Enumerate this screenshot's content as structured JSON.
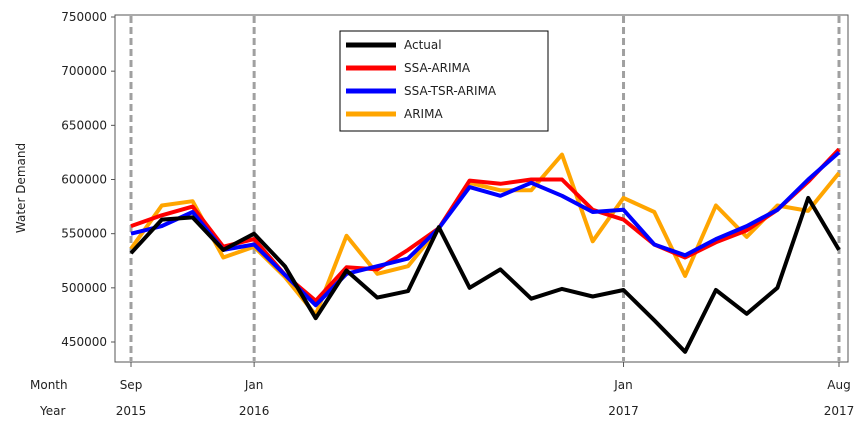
{
  "chart_data": {
    "type": "line",
    "title": "",
    "xlabel": "",
    "ylabel": "Water Demand",
    "ylim": [
      430000,
      750000
    ],
    "yticks": [
      "750000",
      "700000",
      "650000",
      "600000",
      "550000",
      "500000",
      "450000"
    ],
    "x": [
      "2015-09",
      "2015-10",
      "2015-11",
      "2015-12",
      "2016-01",
      "2016-02",
      "2016-03",
      "2016-04",
      "2016-05",
      "2016-06",
      "2016-07",
      "2016-08",
      "2016-09",
      "2016-10",
      "2016-11",
      "2016-12",
      "2017-01",
      "2017-02",
      "2017-03",
      "2017-04",
      "2017-05",
      "2017-06",
      "2017-07",
      "2017-08"
    ],
    "x_axis": {
      "row_labels": {
        "month": "Month",
        "year": "Year"
      },
      "ticks": [
        {
          "month": "Sep",
          "year": "2015"
        },
        {
          "month": "Jan",
          "year": "2016"
        },
        {
          "month": "Jan",
          "year": "2017"
        },
        {
          "month": "Aug",
          "year": "2017"
        }
      ]
    },
    "reference_lines_at": [
      "2015-09",
      "2016-01",
      "2017-01",
      "2017-08"
    ],
    "legend_position": "top-center",
    "grid": false,
    "series": [
      {
        "name": "Actual",
        "color": "#000000",
        "values": [
          532000,
          563000,
          565000,
          535000,
          550000,
          520000,
          472000,
          516000,
          491000,
          497000,
          556000,
          500000,
          517000,
          490000,
          499000,
          492000,
          498000,
          470000,
          441000,
          498000,
          476000,
          500000,
          583000,
          535000
        ]
      },
      {
        "name": "SSA-ARIMA",
        "color": "#ff0000",
        "values": [
          557000,
          567000,
          575000,
          538000,
          545000,
          512000,
          488000,
          519000,
          517000,
          535000,
          555000,
          599000,
          596000,
          600000,
          600000,
          572000,
          563000,
          540000,
          528000,
          542000,
          553000,
          572000,
          598000,
          628000
        ]
      },
      {
        "name": "SSA-TSR-ARIMA",
        "color": "#0000ff",
        "values": [
          550000,
          557000,
          570000,
          535000,
          540000,
          512000,
          484000,
          513000,
          520000,
          527000,
          555000,
          593000,
          585000,
          597000,
          585000,
          570000,
          572000,
          540000,
          530000,
          545000,
          557000,
          572000,
          600000,
          625000
        ]
      },
      {
        "name": "ARIMA",
        "color": "#ffa500",
        "values": [
          536000,
          576000,
          580000,
          528000,
          538000,
          510000,
          475000,
          548000,
          513000,
          520000,
          555000,
          597000,
          590000,
          590000,
          623000,
          543000,
          583000,
          570000,
          511000,
          576000,
          547000,
          576000,
          571000,
          606000
        ]
      }
    ]
  }
}
